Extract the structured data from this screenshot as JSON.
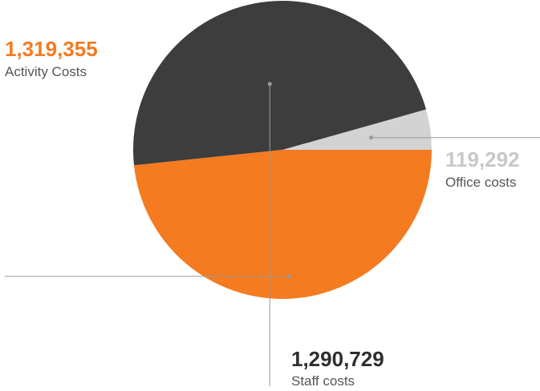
{
  "chart_data": {
    "type": "pie",
    "title": "",
    "slices": [
      {
        "label": "Office costs",
        "value": 119292,
        "value_label": "119,292",
        "color": "#d3d3d3"
      },
      {
        "label": "Staff costs",
        "value": 1290729,
        "value_label": "1,290,729",
        "color": "#3d3d3d"
      },
      {
        "label": "Activity Costs",
        "value": 1319355,
        "value_label": "1,319,355",
        "color": "#f47b20"
      }
    ],
    "label_colors": {
      "Office costs": "#c8c8c8",
      "Staff costs": "#2e2e2e",
      "Activity Costs": "#f47b20"
    },
    "leader_line_color": "#9a9a9a",
    "start_angle_deg": 0,
    "direction": "counterclockwise-from-3-oclock",
    "legend": "none"
  }
}
